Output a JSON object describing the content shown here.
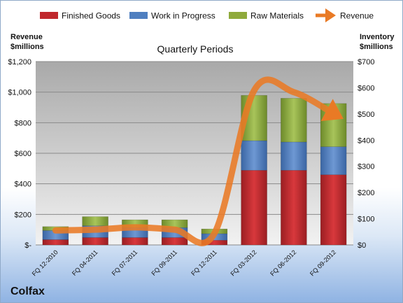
{
  "chart_data": {
    "type": "bar",
    "title": "Quarterly Periods",
    "company": "Colfax",
    "left_axis_title": [
      "Revenue",
      "$millions"
    ],
    "right_axis_title": [
      "Inventory",
      "$millions"
    ],
    "categories": [
      "FQ 12-2010",
      "FQ 04-2011",
      "FQ 07-2011",
      "FQ 09-2011",
      "FQ 12-2011",
      "FQ 03-2012",
      "FQ 06-2012",
      "FQ 09-2012"
    ],
    "left_ticks": [
      "$-",
      "$200",
      "$400",
      "$600",
      "$800",
      "$1,000",
      "$1,200"
    ],
    "right_ticks": [
      "$0",
      "$100",
      "$200",
      "$300",
      "$400",
      "$500",
      "$600",
      "$700"
    ],
    "left_ylim": [
      0,
      1200
    ],
    "right_ylim": [
      0,
      700
    ],
    "grid": true,
    "legend_position": "top",
    "stacked_series": [
      {
        "name": "Finished Goods",
        "axis": "right",
        "color": "#c0282d",
        "values": [
          20,
          28,
          28,
          28,
          18,
          285,
          285,
          268
        ]
      },
      {
        "name": "Work in Progress",
        "axis": "right",
        "color": "#4f7fc0",
        "values": [
          35,
          45,
          38,
          38,
          25,
          113,
          108,
          107
        ]
      },
      {
        "name": "Raw Materials",
        "axis": "right",
        "color": "#8faa3c",
        "values": [
          15,
          35,
          30,
          30,
          18,
          173,
          167,
          165
        ]
      }
    ],
    "line_series": {
      "name": "Revenue",
      "axis": "left",
      "color": "#e97a25",
      "values": [
        95,
        100,
        115,
        100,
        75,
        1010,
        1000,
        860
      ]
    }
  }
}
